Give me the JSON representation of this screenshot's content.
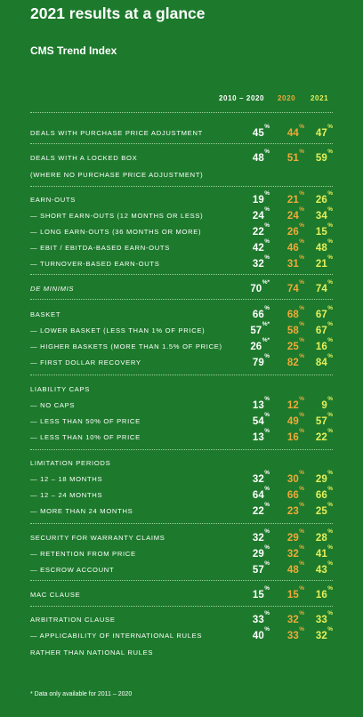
{
  "title": "2021 results at a glance",
  "subtitle": "CMS Trend Index",
  "columns": [
    "2010 – 2020",
    "2020",
    "2021"
  ],
  "colors": {
    "background": "#1d7a2c",
    "col2010_2020": "#ffffff",
    "col2020": "#f0a93a",
    "col2021": "#e6ef5a"
  },
  "rows": [
    {
      "label": "DEALS WITH PURCHASE PRICE ADJUSTMENT",
      "v1": "45",
      "s1": "%",
      "v2": "44",
      "s2": "%",
      "v3": "47",
      "s3": "%"
    },
    {
      "label": "DEALS WITH A LOCKED BOX",
      "v1": "48",
      "s1": "%",
      "v2": "51",
      "s2": "%",
      "v3": "59",
      "s3": "%"
    },
    {
      "label": "(WHERE NO PURCHASE PRICE ADJUSTMENT)"
    },
    {
      "label": "EARN-OUTS",
      "v1": "19",
      "s1": "%",
      "v2": "21",
      "s2": "%",
      "v3": "26",
      "s3": "%"
    },
    {
      "label": "— SHORT EARN-OUTS (12 MONTHS OR LESS)",
      "v1": "24",
      "s1": "%",
      "v2": "24",
      "s2": "%",
      "v3": "34",
      "s3": "%"
    },
    {
      "label": "— LONG EARN-OUTS (36 MONTHS OR MORE)",
      "v1": "22",
      "s1": "%",
      "v2": "26",
      "s2": "%",
      "v3": "15",
      "s3": "%"
    },
    {
      "label": "— EBIT / EBITDA-BASED EARN-OUTS",
      "v1": "42",
      "s1": "%",
      "v2": "46",
      "s2": "%",
      "v3": "48",
      "s3": "%"
    },
    {
      "label": "— TURNOVER-BASED EARN-OUTS",
      "v1": "32",
      "s1": "%",
      "v2": "31",
      "s2": "%",
      "v3": "21",
      "s3": "%"
    },
    {
      "label": "DE MINIMIS",
      "italic": true,
      "v1": "70",
      "s1": "%*",
      "v2": "74",
      "s2": "%",
      "v3": "74",
      "s3": "%"
    },
    {
      "label": "BASKET",
      "v1": "66",
      "s1": "%",
      "v2": "68",
      "s2": "%",
      "v3": "67",
      "s3": "%"
    },
    {
      "label": "— LOWER BASKET (LESS THAN 1% OF PRICE)",
      "v1": "57",
      "s1": "%*",
      "v2": "58",
      "s2": "%",
      "v3": "67",
      "s3": "%"
    },
    {
      "label": "— HIGHER BASKETS (MORE THAN 1.5% OF PRICE)",
      "v1": "26",
      "s1": "%*",
      "v2": "25",
      "s2": "%",
      "v3": "16",
      "s3": "%"
    },
    {
      "label": "— FIRST DOLLAR RECOVERY",
      "v1": "79",
      "s1": "%",
      "v2": "82",
      "s2": "%",
      "v3": "84",
      "s3": "%"
    },
    {
      "label": "LIABILITY CAPS"
    },
    {
      "label": "— NO CAPS",
      "v1": "13",
      "s1": "%",
      "v2": "12",
      "s2": "%",
      "v3": "9",
      "s3": "%"
    },
    {
      "label": "— LESS THAN 50% OF PRICE",
      "v1": "54",
      "s1": "%",
      "v2": "49",
      "s2": "%",
      "v3": "57",
      "s3": "%"
    },
    {
      "label": "— LESS THAN 10% OF PRICE",
      "v1": "13",
      "s1": "%",
      "v2": "16",
      "s2": "%",
      "v3": "22",
      "s3": "%"
    },
    {
      "label": "LIMITATION PERIODS"
    },
    {
      "label": "— 12 – 18 MONTHS",
      "v1": "32",
      "s1": "%",
      "v2": "30",
      "s2": "%",
      "v3": "29",
      "s3": "%"
    },
    {
      "label": "— 12 – 24 MONTHS",
      "v1": "64",
      "s1": "%",
      "v2": "66",
      "s2": "%",
      "v3": "66",
      "s3": "%"
    },
    {
      "label": "— MORE THAN 24 MONTHS",
      "v1": "22",
      "s1": "%",
      "v2": "23",
      "s2": "%",
      "v3": "25",
      "s3": "%"
    },
    {
      "label": "SECURITY FOR WARRANTY CLAIMS",
      "v1": "32",
      "s1": "%",
      "v2": "29",
      "s2": "%",
      "v3": "28",
      "s3": "%"
    },
    {
      "label": "— RETENTION FROM PRICE",
      "v1": "29",
      "s1": "%",
      "v2": "32",
      "s2": "%",
      "v3": "41",
      "s3": "%"
    },
    {
      "label": "— ESCROW ACCOUNT",
      "v1": "57",
      "s1": "%",
      "v2": "48",
      "s2": "%",
      "v3": "43",
      "s3": "%"
    },
    {
      "label": "MAC CLAUSE",
      "v1": "15",
      "s1": "%",
      "v2": "15",
      "s2": "%",
      "v3": "16",
      "s3": "%"
    },
    {
      "label": "ARBITRATION CLAUSE",
      "v1": "33",
      "s1": "%",
      "v2": "32",
      "s2": "%",
      "v3": "33",
      "s3": "%"
    },
    {
      "label": "— APPLICABILITY OF INTERNATIONAL RULES",
      "v1": "40",
      "s1": "%",
      "v2": "33",
      "s2": "%",
      "v3": "32",
      "s3": "%"
    },
    {
      "label": "RATHER THAN NATIONAL RULES"
    }
  ],
  "footnote": "* Data only available for 2011 – 2020"
}
